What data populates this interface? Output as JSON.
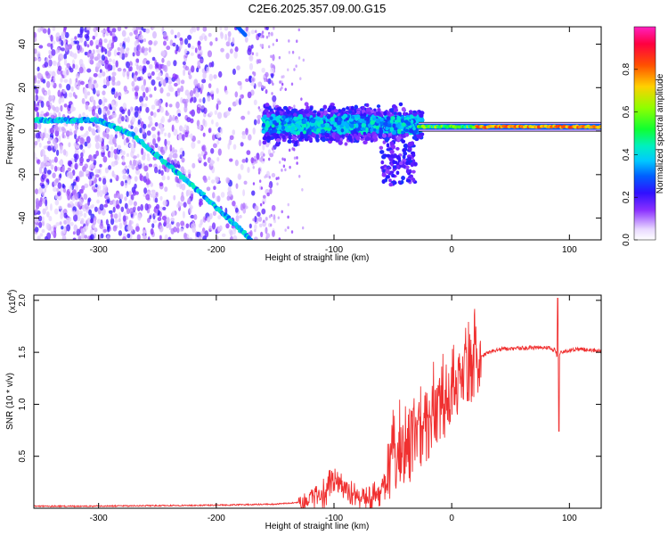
{
  "title": "C2E6.2025.357.09.00.G15",
  "chart_data": [
    {
      "type": "heatmap",
      "xlabel": "Height of straight line (km)",
      "ylabel": "Frequency (Hz)",
      "xlim": [
        -355,
        127
      ],
      "ylim": [
        -50,
        48
      ],
      "xticks": [
        -300,
        -200,
        -100,
        0,
        100
      ],
      "yticks": [
        -40,
        -20,
        0,
        20,
        40
      ],
      "colorbar": {
        "label": "Normalized spectral amplitude",
        "range": [
          0,
          1
        ],
        "ticks": [
          0.0,
          0.2,
          0.4,
          0.6,
          0.8
        ]
      },
      "carrier_line": {
        "x": [
          -355,
          -300,
          -270,
          -240,
          -210,
          -190,
          -170
        ],
        "freq": [
          5,
          5,
          -2,
          -16,
          -30,
          -40,
          -50
        ]
      },
      "upper_line": {
        "x": [
          -182,
          -175
        ],
        "freq": [
          48,
          44
        ]
      },
      "stable_band": {
        "x_start": -160,
        "x_end": 127,
        "freq_center": 2
      }
    },
    {
      "type": "line",
      "xlabel": "Height of straight line (km)",
      "ylabel": "SNR (10 * v/v)",
      "scale_note": "(x10",
      "scale_exp": "4",
      "xlim": [
        -355,
        127
      ],
      "ylim": [
        0,
        2.05
      ],
      "xticks": [
        -300,
        -200,
        -100,
        0,
        100
      ],
      "yticks": [
        0.5,
        1.0,
        1.5,
        2.0
      ],
      "series": [
        {
          "color": "#f03030",
          "x": [
            -355,
            -300,
            -250,
            -200,
            -150,
            -125,
            -110,
            -100,
            -90,
            -80,
            -70,
            -60,
            -50,
            -40,
            -30,
            -20,
            -10,
            0,
            10,
            20,
            30,
            40,
            60,
            80,
            88,
            90,
            92,
            100,
            110,
            127
          ],
          "y": [
            0.02,
            0.02,
            0.025,
            0.03,
            0.04,
            0.06,
            0.15,
            0.3,
            0.2,
            0.12,
            0.08,
            0.15,
            0.45,
            0.55,
            0.65,
            0.8,
            0.95,
            1.05,
            1.25,
            1.4,
            1.5,
            1.53,
            1.54,
            1.55,
            1.52,
            1.45,
            1.5,
            1.52,
            1.53,
            1.51
          ]
        }
      ]
    }
  ]
}
